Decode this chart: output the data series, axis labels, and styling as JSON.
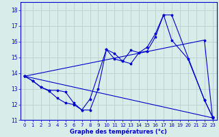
{
  "xlabel": "Graphe des températures (°c)",
  "xlim": [
    -0.5,
    23.5
  ],
  "ylim": [
    11,
    18.5
  ],
  "yticks": [
    11,
    12,
    13,
    14,
    15,
    16,
    17,
    18
  ],
  "xticks": [
    0,
    1,
    2,
    3,
    4,
    5,
    6,
    7,
    8,
    9,
    10,
    11,
    12,
    13,
    14,
    15,
    16,
    17,
    18,
    19,
    20,
    21,
    22,
    23
  ],
  "background_color": "#d8ecea",
  "grid_color": "#b0ccca",
  "line_color": "#0000cc",
  "series": [
    {
      "x": [
        0,
        1,
        2,
        3,
        4,
        5,
        6,
        7,
        8,
        9,
        10,
        11,
        12,
        13,
        14,
        15,
        16,
        17,
        18,
        20,
        22,
        23
      ],
      "y": [
        13.8,
        13.5,
        13.1,
        12.9,
        12.9,
        12.8,
        12.1,
        11.65,
        11.65,
        13.0,
        15.5,
        14.9,
        14.75,
        14.6,
        15.3,
        15.4,
        16.3,
        17.7,
        16.1,
        14.9,
        12.3,
        11.2
      ]
    },
    {
      "x": [
        0,
        1,
        2,
        3,
        4,
        5,
        6,
        7,
        8,
        10,
        11,
        12,
        13,
        14,
        15,
        16,
        17,
        18,
        22,
        23
      ],
      "y": [
        13.8,
        13.5,
        13.1,
        12.85,
        12.4,
        12.1,
        12.0,
        11.65,
        12.35,
        15.5,
        15.25,
        14.75,
        15.45,
        15.3,
        15.65,
        16.5,
        17.7,
        17.7,
        12.3,
        11.2
      ]
    },
    {
      "x": [
        0,
        23
      ],
      "y": [
        13.8,
        11.15
      ]
    },
    {
      "x": [
        0,
        22,
        23
      ],
      "y": [
        13.8,
        16.1,
        11.15
      ]
    }
  ]
}
